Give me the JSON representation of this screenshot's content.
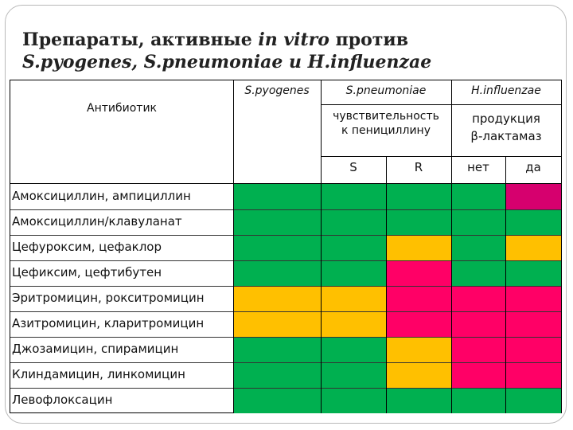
{
  "title": {
    "line1_text": "Препараты, активные ",
    "line1_italic": "in vitro",
    "line1_rest": " против",
    "line2": "S.pyogenes, S.pneumoniae и H.influenzae"
  },
  "header": {
    "antibiotic": "Антибиотик",
    "pyogenes": "S.pyogenes",
    "pneumoniae": "S.pneumoniae",
    "influenzae": "H.influenzae",
    "pneumo_sub_line1": "чувствительность",
    "pneumo_sub_line2": "к пенициллину",
    "influ_sub_line1": "продукция",
    "influ_sub_line2": "β-лактамаз",
    "s": "S",
    "r": "R",
    "net": "нет",
    "da": "да"
  },
  "colors": {
    "green": "#00b050",
    "yellow": "#ffc000",
    "pink": "#ff0066",
    "magenta": "#d6006e"
  },
  "rows": [
    {
      "label": "Амоксициллин, ампициллин",
      "cells": [
        "green",
        "green",
        "green",
        "green",
        "magenta"
      ]
    },
    {
      "label": "Амоксициллин/клавуланат",
      "cells": [
        "green",
        "green",
        "green",
        "green",
        "green"
      ]
    },
    {
      "label": "Цефуроксим, цефаклор",
      "cells": [
        "green",
        "green",
        "yellow",
        "green",
        "yellow"
      ]
    },
    {
      "label": "Цефиксим, цефтибутен",
      "cells": [
        "green",
        "green",
        "pink",
        "green",
        "green"
      ]
    },
    {
      "label": "Эритромицин, рокситромицин",
      "cells": [
        "yellow",
        "yellow",
        "pink",
        "pink",
        "pink"
      ]
    },
    {
      "label": "Азитромицин, кларитромицин",
      "cells": [
        "yellow",
        "yellow",
        "pink",
        "pink",
        "pink"
      ]
    },
    {
      "label": "Джозамицин, спирамицин",
      "cells": [
        "green",
        "green",
        "yellow",
        "pink",
        "pink"
      ]
    },
    {
      "label": "Клиндамицин, линкомицин",
      "cells": [
        "green",
        "green",
        "yellow",
        "pink",
        "pink"
      ]
    },
    {
      "label": "Левофлоксацин",
      "cells": [
        "green",
        "green",
        "green",
        "green",
        "green"
      ]
    }
  ]
}
